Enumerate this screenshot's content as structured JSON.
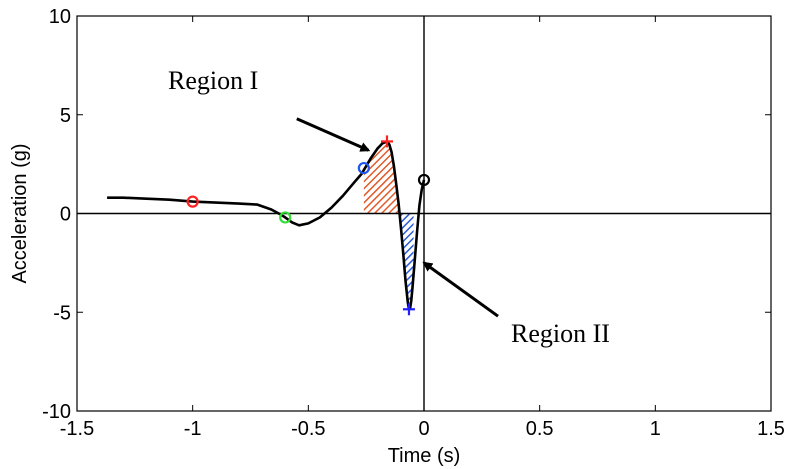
{
  "chart_data": {
    "type": "line",
    "xlabel": "Time (s)",
    "ylabel": "Acceleration (g)",
    "xlim": [
      -1.5,
      1.5
    ],
    "ylim": [
      -10,
      10
    ],
    "xticks": [
      -1.5,
      -1,
      -0.5,
      0,
      0.5,
      1,
      1.5
    ],
    "xtick_labels": [
      "-1.5",
      "-1",
      "-0.5",
      "0",
      "0.5",
      "1",
      "1.5"
    ],
    "yticks": [
      -10,
      -5,
      0,
      5,
      10
    ],
    "ytick_labels": [
      "-10",
      "-5",
      "0",
      "5",
      "10"
    ],
    "grid": false,
    "reference_lines": {
      "x": 0,
      "y": 0
    },
    "series": [
      {
        "color": "#000000",
        "x": [
          -1.37,
          -1.3,
          -1.2,
          -1.1,
          -1.0,
          -0.9,
          -0.8,
          -0.72,
          -0.66,
          -0.62,
          -0.6,
          -0.57,
          -0.54,
          -0.5,
          -0.45,
          -0.4,
          -0.35,
          -0.3,
          -0.27,
          -0.25,
          -0.23,
          -0.2,
          -0.18,
          -0.16,
          -0.15,
          -0.14,
          -0.13,
          -0.12,
          -0.11,
          -0.1,
          -0.09,
          -0.08,
          -0.07,
          -0.065,
          -0.06,
          -0.055,
          -0.05,
          -0.04,
          -0.03,
          -0.02,
          -0.01,
          0.0
        ],
        "y": [
          0.8,
          0.8,
          0.75,
          0.7,
          0.6,
          0.55,
          0.5,
          0.45,
          0.2,
          -0.05,
          -0.2,
          -0.45,
          -0.6,
          -0.5,
          -0.2,
          0.3,
          0.9,
          1.6,
          2.0,
          2.4,
          2.8,
          3.3,
          3.55,
          3.65,
          3.5,
          3.1,
          2.4,
          1.5,
          0.5,
          -0.7,
          -2.0,
          -3.4,
          -4.5,
          -4.85,
          -4.8,
          -4.4,
          -3.8,
          -2.4,
          -0.9,
          0.4,
          1.2,
          1.7
        ]
      }
    ],
    "markers": [
      {
        "x": -1.0,
        "y": 0.6,
        "shape": "circle",
        "color": "#ff2020"
      },
      {
        "x": -0.6,
        "y": -0.2,
        "shape": "circle",
        "color": "#33dd33"
      },
      {
        "x": -0.26,
        "y": 2.3,
        "shape": "circle",
        "color": "#2255ee"
      },
      {
        "x": 0.0,
        "y": 1.7,
        "shape": "circle",
        "color": "#000000"
      },
      {
        "x": -0.16,
        "y": 3.65,
        "shape": "plus",
        "color": "#ff2020"
      },
      {
        "x": -0.065,
        "y": -4.85,
        "shape": "plus",
        "color": "#2020ff"
      }
    ],
    "shaded_regions": [
      {
        "x_from": -0.26,
        "x_to": -0.105,
        "color": "#e05a2a"
      },
      {
        "x_from": -0.105,
        "x_to": -0.045,
        "color": "#2a5ad8"
      }
    ],
    "annotations": [
      {
        "text": "Region I",
        "arrow_from": [
          -0.55,
          4.8
        ],
        "arrow_to": [
          -0.24,
          3.2
        ]
      },
      {
        "text": "Region II",
        "arrow_from": [
          0.32,
          -5.2
        ],
        "arrow_to": [
          0.0,
          -2.5
        ]
      }
    ]
  }
}
